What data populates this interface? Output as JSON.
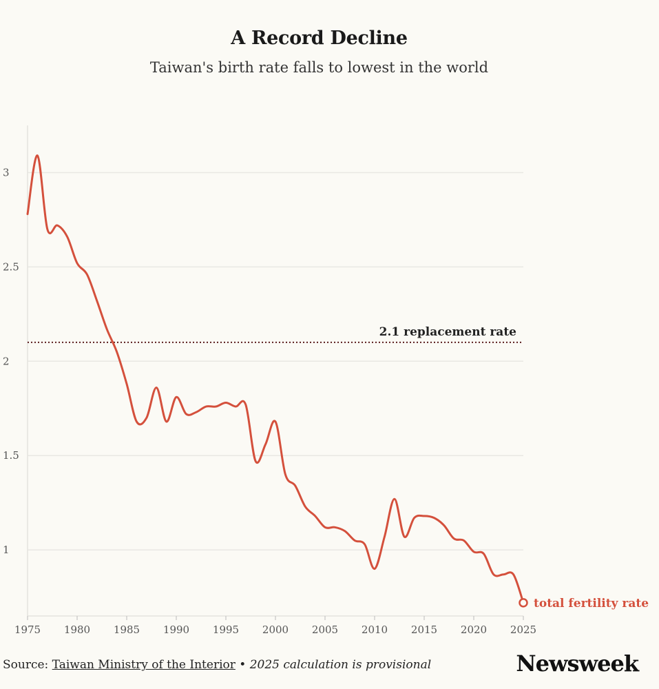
{
  "header": {
    "title": "A Record Decline",
    "subtitle": "Taiwan's birth rate falls to lowest in the world"
  },
  "chart_data": {
    "type": "line",
    "title": "A Record Decline",
    "subtitle": "Taiwan's birth rate falls to lowest in the world",
    "xlabel": "",
    "ylabel": "",
    "xlim": [
      1975,
      2025
    ],
    "ylim": [
      0.65,
      3.25
    ],
    "x_ticks": [
      1975,
      1980,
      1985,
      1990,
      1995,
      2000,
      2005,
      2010,
      2015,
      2020,
      2025
    ],
    "x_tick_labels": [
      "1975",
      "1980",
      "1985",
      "1990",
      "1995",
      "2000",
      "2005",
      "2010",
      "2015",
      "2020",
      "2025"
    ],
    "y_ticks": [
      1,
      1.5,
      2,
      2.5,
      3
    ],
    "y_tick_labels": [
      "1",
      "1.5",
      "2",
      "2.5",
      "3"
    ],
    "grid": true,
    "series": [
      {
        "name": "total fertility rate",
        "color": "#d4503c",
        "x": [
          1975,
          1976,
          1977,
          1978,
          1979,
          1980,
          1981,
          1982,
          1983,
          1984,
          1985,
          1986,
          1987,
          1988,
          1989,
          1990,
          1991,
          1992,
          1993,
          1994,
          1995,
          1996,
          1997,
          1998,
          1999,
          2000,
          2001,
          2002,
          2003,
          2004,
          2005,
          2006,
          2007,
          2008,
          2009,
          2010,
          2011,
          2012,
          2013,
          2014,
          2015,
          2016,
          2017,
          2018,
          2019,
          2020,
          2021,
          2022,
          2023,
          2024,
          2025
        ],
        "values": [
          2.78,
          3.09,
          2.7,
          2.72,
          2.66,
          2.52,
          2.46,
          2.32,
          2.17,
          2.05,
          1.88,
          1.68,
          1.7,
          1.86,
          1.68,
          1.81,
          1.72,
          1.73,
          1.76,
          1.76,
          1.78,
          1.76,
          1.77,
          1.47,
          1.56,
          1.68,
          1.4,
          1.34,
          1.23,
          1.18,
          1.12,
          1.12,
          1.1,
          1.05,
          1.03,
          0.9,
          1.07,
          1.27,
          1.07,
          1.17,
          1.18,
          1.17,
          1.13,
          1.06,
          1.05,
          0.99,
          0.98,
          0.87,
          0.87,
          0.87,
          0.72
        ]
      }
    ],
    "reference_line": {
      "value": 2.1,
      "label": "2.1 replacement rate",
      "color": "#5a1c1c"
    }
  },
  "footer": {
    "source_prefix": "Source: ",
    "source_name": "Taiwan Ministry of the Interior",
    "separator": " • ",
    "note": "2025 calculation is provisional"
  },
  "brand": "Newsweek"
}
